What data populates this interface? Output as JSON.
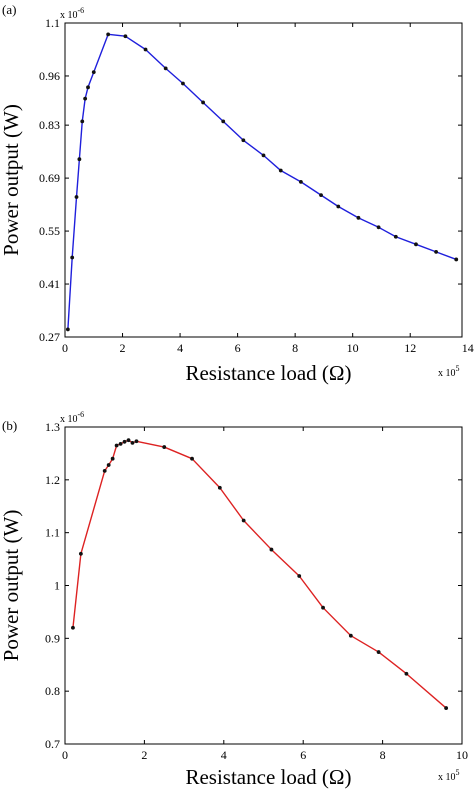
{
  "chart_data": [
    {
      "panel_label": "(a)",
      "type": "line",
      "xlabel": "Resistance load (Ω)",
      "ylabel": "Power output (W)",
      "x_multiplier": "x 10",
      "x_multiplier_exp": "5",
      "y_multiplier": "x 10",
      "y_multiplier_exp": "-6",
      "xlim": [
        0,
        13.8
      ],
      "ylim": [
        0.27,
        1.1
      ],
      "xticks": [
        0,
        2,
        4,
        6,
        8,
        10,
        12,
        14
      ],
      "yticks": [
        0.27,
        0.41,
        0.55,
        0.69,
        0.83,
        0.96,
        1.1
      ],
      "ytick_labels": [
        "0.27",
        "0.41",
        "0.55",
        "0.69",
        "0.83",
        "0.96",
        "1.1"
      ],
      "line_color": "#1f1fdc",
      "marker_color": "#111111",
      "grid": false,
      "series": [
        {
          "x": [
            0.1,
            0.25,
            0.4,
            0.5,
            0.6,
            0.7,
            0.8,
            1.0,
            1.5,
            2.1,
            2.8,
            3.5,
            4.1,
            4.8,
            5.5,
            6.2,
            6.9,
            7.5,
            8.2,
            8.9,
            9.5,
            10.2,
            10.9,
            11.5,
            12.2,
            12.9,
            13.6
          ],
          "y": [
            0.29,
            0.48,
            0.64,
            0.74,
            0.84,
            0.9,
            0.93,
            0.97,
            1.07,
            1.065,
            1.03,
            0.98,
            0.94,
            0.89,
            0.84,
            0.79,
            0.75,
            0.71,
            0.68,
            0.645,
            0.615,
            0.585,
            0.56,
            0.535,
            0.515,
            0.495,
            0.475
          ]
        }
      ]
    },
    {
      "panel_label": "(b)",
      "type": "line",
      "xlabel": "Resistance load (Ω)",
      "ylabel": "Power output (W)",
      "x_multiplier": "x 10",
      "x_multiplier_exp": "5",
      "y_multiplier": "x 10",
      "y_multiplier_exp": "-6",
      "xlim": [
        0,
        10
      ],
      "ylim": [
        0.7,
        1.3
      ],
      "xticks": [
        0,
        2,
        4,
        6,
        8,
        10
      ],
      "yticks": [
        0.7,
        0.8,
        0.9,
        1.0,
        1.1,
        1.2,
        1.3
      ],
      "ytick_labels": [
        "0.7",
        "0.8",
        "0.9",
        "1",
        "1.1",
        "1.2",
        "1.3"
      ],
      "line_color": "#dd2222",
      "marker_color": "#111111",
      "grid": false,
      "series": [
        {
          "x": [
            0.2,
            0.4,
            1.0,
            1.1,
            1.2,
            1.3,
            1.4,
            1.5,
            1.6,
            1.7,
            1.8,
            2.5,
            3.2,
            3.9,
            4.5,
            5.2,
            5.9,
            6.5,
            7.2,
            7.9,
            8.6,
            9.6
          ],
          "y": [
            0.92,
            1.06,
            1.217,
            1.228,
            1.24,
            1.265,
            1.268,
            1.272,
            1.275,
            1.27,
            1.273,
            1.262,
            1.24,
            1.185,
            1.123,
            1.068,
            1.018,
            0.958,
            0.905,
            0.874,
            0.833,
            0.768
          ]
        }
      ]
    }
  ]
}
